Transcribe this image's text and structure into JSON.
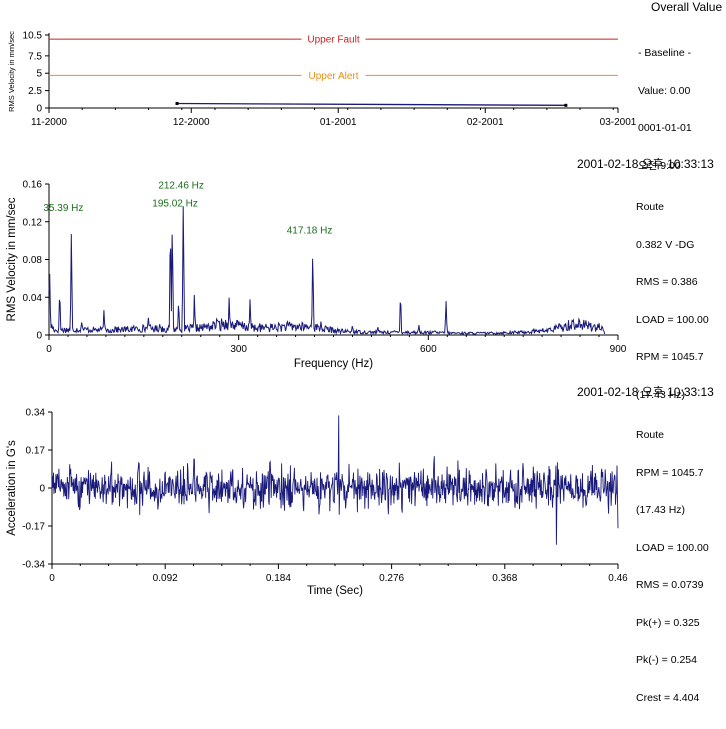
{
  "colors": {
    "trace": "#1a1a7a",
    "fault": "#cc2222",
    "alert": "#e8901a",
    "peak_label": "#1a6e1a",
    "axis": "#000000"
  },
  "panels": {
    "trend": {
      "header": "Overall Value",
      "info": [
        "- Baseline -",
        "Value: 0.00",
        "0001-01-01",
        "오전 9:00"
      ]
    },
    "spectrum": {
      "timestamp": "2001-02-18 오후 10:33:13",
      "info": [
        "Route",
        "0.382 V -DG",
        "RMS = 0.386",
        "LOAD = 100.00",
        "RPM = 1045.7",
        "(17.43 Hz)"
      ]
    },
    "waveform": {
      "timestamp": "2001-02-18 오후 10:33:13",
      "info": [
        "Route",
        "RPM = 1045.7",
        "(17.43 Hz)",
        "LOAD = 100.00",
        "RMS = 0.0739",
        "Pk(+) = 0.325",
        "Pk(-) = 0.254",
        "Crest = 4.404"
      ]
    }
  },
  "chart_data": [
    {
      "type": "line",
      "ylabel": "RMS Velocity in mm/sec",
      "xlabel": "",
      "x_tick_labels": [
        "11-2000",
        "12-2000",
        "01-2001",
        "02-2001",
        "03-2001"
      ],
      "x_ticks": [
        "2000-11-01",
        "2000-12-01",
        "2001-01-01",
        "2001-02-01",
        "2001-03-01"
      ],
      "xlim": [
        "2000-11-01",
        "2001-03-01"
      ],
      "y_ticks": [
        0,
        2.5,
        5,
        7.5,
        10.5
      ],
      "y_tick_labels": [
        "0",
        "2.5",
        "5",
        "7.5",
        "10.5"
      ],
      "ylim": [
        0,
        10.5
      ],
      "series": [
        {
          "x": [
            "2000-11-28",
            "2001-02-18"
          ],
          "values": [
            0.65,
            0.386
          ]
        }
      ],
      "thresholds": [
        {
          "label": "Upper Fault",
          "value": 9.9
        },
        {
          "label": "Upper Alert",
          "value": 4.7
        }
      ]
    },
    {
      "type": "line",
      "xlabel": "Frequency (Hz)",
      "ylabel": "RMS Velocity in mm/sec",
      "xlim": [
        0,
        900
      ],
      "x_ticks": [
        0,
        300,
        600,
        900
      ],
      "ylim": [
        0,
        0.16
      ],
      "y_ticks": [
        0,
        0.04,
        0.08,
        0.12,
        0.16
      ],
      "y_tick_labels": [
        "0",
        "0.04",
        "0.08",
        "0.12",
        "0.16"
      ],
      "floor": [
        [
          0,
          0.068
        ],
        [
          3,
          0.01
        ],
        [
          10,
          0.005
        ],
        [
          40,
          0.006
        ],
        [
          100,
          0.005
        ],
        [
          150,
          0.007
        ],
        [
          200,
          0.006
        ],
        [
          250,
          0.008
        ],
        [
          280,
          0.012
        ],
        [
          300,
          0.01
        ],
        [
          330,
          0.007
        ],
        [
          380,
          0.009
        ],
        [
          420,
          0.008
        ],
        [
          460,
          0.004
        ],
        [
          500,
          0.003
        ],
        [
          550,
          0.003
        ],
        [
          650,
          0.002
        ],
        [
          700,
          0.002
        ],
        [
          750,
          0.003
        ],
        [
          790,
          0.005
        ],
        [
          815,
          0.009
        ],
        [
          830,
          0.012
        ],
        [
          860,
          0.009
        ],
        [
          873,
          0.008
        ],
        [
          880,
          0
        ]
      ],
      "peaks": [
        [
          17,
          0.052
        ],
        [
          35.39,
          0.12
        ],
        [
          52,
          0.016
        ],
        [
          70,
          0.008
        ],
        [
          87,
          0.028
        ],
        [
          105,
          0.012
        ],
        [
          122,
          0.008
        ],
        [
          140,
          0.006
        ],
        [
          157,
          0.022
        ],
        [
          175,
          0.012
        ],
        [
          192,
          0.128
        ],
        [
          195.02,
          0.13
        ],
        [
          205,
          0.04
        ],
        [
          212.46,
          0.15
        ],
        [
          230,
          0.045
        ],
        [
          247,
          0.012
        ],
        [
          265,
          0.018
        ],
        [
          285,
          0.042
        ],
        [
          300,
          0.01
        ],
        [
          318,
          0.04
        ],
        [
          333,
          0.015
        ],
        [
          380,
          0.012
        ],
        [
          417.18,
          0.096
        ],
        [
          430,
          0.015
        ],
        [
          480,
          0.012
        ],
        [
          520,
          0.01
        ],
        [
          556,
          0.048
        ],
        [
          585,
          0.012
        ],
        [
          610,
          0.006
        ],
        [
          628,
          0.038
        ],
        [
          700,
          0.004
        ],
        [
          774,
          0.006
        ],
        [
          830,
          0.01
        ]
      ],
      "peak_labels": [
        {
          "x": 35.39,
          "y": 0.12,
          "label": "35.39 Hz"
        },
        {
          "x": 195.02,
          "y": 0.13,
          "label": "195.02 Hz"
        },
        {
          "x": 212.46,
          "y": 0.15,
          "label": "212.46 Hz"
        },
        {
          "x": 417.18,
          "y": 0.096,
          "label": "417.18 Hz"
        }
      ]
    },
    {
      "type": "line",
      "xlabel": "Time (Sec)",
      "ylabel": "Acceleration in G's",
      "xlim": [
        0,
        0.46
      ],
      "x_ticks": [
        0,
        0.092,
        0.184,
        0.276,
        0.368,
        0.46
      ],
      "ylim": [
        -0.34,
        0.34
      ],
      "y_ticks": [
        -0.34,
        -0.17,
        0,
        0.17,
        0.34
      ],
      "y_tick_labels": [
        "-0.34",
        "-0.17",
        "0",
        "0.17",
        "0.34"
      ],
      "envelope": {
        "rms": 0.0739,
        "pk_pos": 0.325,
        "pk_neg": -0.254,
        "pk_pos_time": 0.233,
        "pk_neg_time": 0.41
      }
    }
  ]
}
